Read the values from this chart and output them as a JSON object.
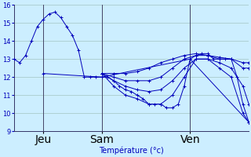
{
  "background_color": "#cceeff",
  "grid_color": "#aacccc",
  "line_color": "#0000bb",
  "xlabel": "Température (°c)",
  "ylim": [
    9,
    16
  ],
  "xlim": [
    0,
    240
  ],
  "yticks": [
    9,
    10,
    11,
    12,
    13,
    14,
    15,
    16
  ],
  "vlines": [
    30,
    90,
    180
  ],
  "vline_labels": [
    "Jeu",
    "Sam",
    "Ven"
  ],
  "series": [
    {
      "x": [
        0,
        6,
        12,
        18,
        24,
        30,
        36,
        42,
        48,
        54,
        60,
        66,
        72,
        78,
        84,
        90,
        96,
        102,
        108,
        114,
        120,
        126,
        132,
        138,
        144,
        150,
        156,
        162,
        168,
        174,
        180,
        186,
        192,
        198,
        204,
        210,
        216,
        222,
        228,
        234,
        240
      ],
      "y": [
        13.0,
        12.8,
        13.2,
        14.0,
        14.8,
        15.2,
        15.5,
        15.6,
        15.3,
        14.8,
        14.3,
        13.5,
        12.0,
        12.0,
        12.0,
        12.0,
        12.0,
        11.8,
        11.5,
        11.3,
        11.2,
        11.0,
        10.8,
        10.5,
        10.5,
        10.5,
        10.3,
        10.3,
        10.5,
        11.5,
        13.0,
        13.2,
        13.3,
        13.3,
        13.0,
        13.0,
        13.0,
        13.0,
        12.0,
        10.5,
        9.5
      ]
    },
    {
      "x": [
        90,
        102,
        114,
        126,
        138,
        150,
        162,
        174,
        186,
        198,
        210,
        222,
        234,
        240
      ],
      "y": [
        12.2,
        12.2,
        12.2,
        12.3,
        12.5,
        12.8,
        13.0,
        13.2,
        13.3,
        13.2,
        13.0,
        13.0,
        12.8,
        12.8
      ]
    },
    {
      "x": [
        90,
        102,
        114,
        126,
        138,
        150,
        162,
        174,
        186,
        198,
        210,
        222,
        234,
        240
      ],
      "y": [
        12.2,
        12.0,
        11.8,
        11.8,
        11.8,
        12.0,
        12.5,
        13.0,
        13.2,
        13.2,
        13.1,
        13.0,
        12.5,
        12.5
      ]
    },
    {
      "x": [
        90,
        102,
        114,
        126,
        138,
        150,
        162,
        174,
        186,
        198,
        210,
        222,
        234,
        240
      ],
      "y": [
        12.2,
        11.8,
        11.5,
        11.3,
        11.2,
        11.3,
        11.8,
        12.5,
        13.0,
        13.0,
        12.8,
        12.5,
        11.5,
        10.5
      ]
    },
    {
      "x": [
        90,
        102,
        114,
        126,
        138,
        150,
        162,
        174,
        186,
        198,
        210,
        222,
        234,
        240
      ],
      "y": [
        12.2,
        11.5,
        11.0,
        10.8,
        10.5,
        10.5,
        11.0,
        12.0,
        13.0,
        13.0,
        12.5,
        12.0,
        10.0,
        9.5
      ]
    },
    {
      "x": [
        30,
        90,
        180,
        240
      ],
      "y": [
        12.2,
        12.0,
        13.0,
        9.5
      ]
    }
  ]
}
